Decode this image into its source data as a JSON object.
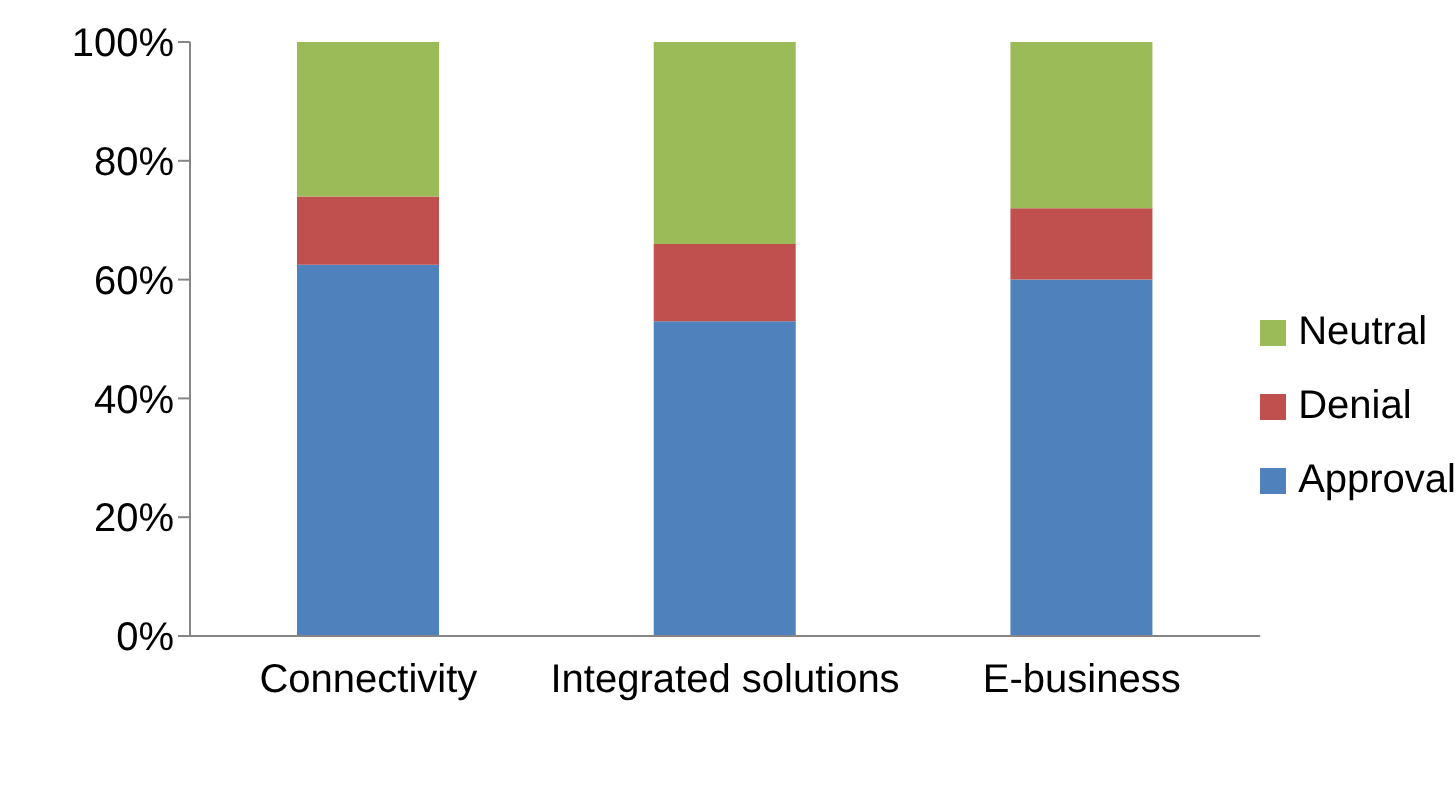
{
  "chart_data": {
    "type": "bar",
    "stacked": true,
    "categories": [
      "Connectivity",
      "Integrated solutions",
      "E-business"
    ],
    "series": [
      {
        "name": "Approval",
        "color": "#4f81bd",
        "values": [
          62.5,
          53,
          60
        ]
      },
      {
        "name": "Denial",
        "color": "#c0504d",
        "values": [
          11.5,
          13,
          12
        ]
      },
      {
        "name": "Neutral",
        "color": "#9bbb59",
        "values": [
          26,
          34,
          28
        ]
      }
    ],
    "ylim": [
      0,
      100
    ],
    "yticks": [
      {
        "value": 0,
        "label": "0%"
      },
      {
        "value": 20,
        "label": "20%"
      },
      {
        "value": 40,
        "label": "40%"
      },
      {
        "value": 60,
        "label": "60%"
      },
      {
        "value": 80,
        "label": "80%"
      },
      {
        "value": 100,
        "label": "100%"
      }
    ],
    "grid": false,
    "legend": "right"
  }
}
